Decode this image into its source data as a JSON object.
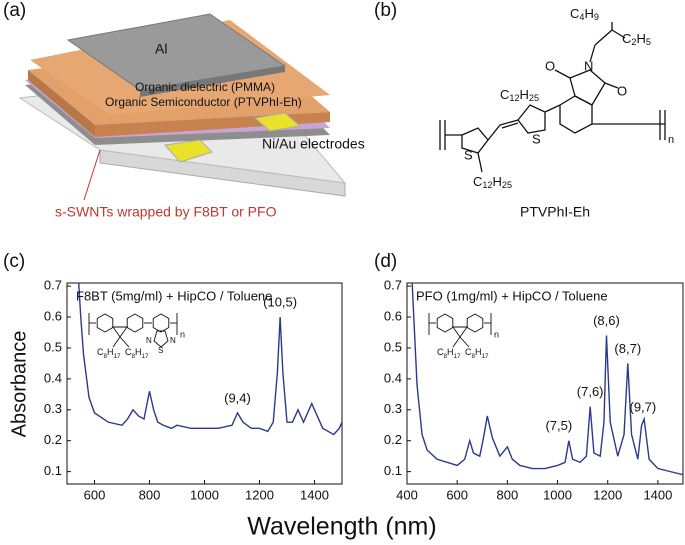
{
  "panel_labels": [
    "(a)",
    "(b)",
    "(c)",
    "(d)"
  ],
  "device": {
    "layers": [
      "Al",
      "Organic dielectric (PMMA)",
      "Organic Semiconductor (PTVPhI-Eh)",
      "Ni/Au electrodes"
    ],
    "annotation": "s-SWNTs wrapped by F8BT or PFO"
  },
  "molecule": {
    "name": "PTVPhI-Eh",
    "atoms": [
      "N",
      "O",
      "O",
      "S",
      "S"
    ],
    "substituents": [
      "C4H9",
      "C2H5",
      "C12H25",
      "C12H25"
    ],
    "repeat": "n"
  },
  "y_axis_label": "Absorbance",
  "x_axis_label": "Wavelength (nm)",
  "chart_data": [
    {
      "type": "line",
      "title": "F8BT (5mg/ml) + HipCO / Toluene",
      "color": "#2c3a8c",
      "inset_labels": [
        "C8H17",
        "C8H17",
        "N",
        "S",
        "N",
        "n"
      ],
      "x": [
        540,
        550,
        560,
        580,
        600,
        650,
        700,
        720,
        740,
        760,
        780,
        800,
        815,
        830,
        850,
        880,
        900,
        950,
        1000,
        1050,
        1100,
        1120,
        1140,
        1170,
        1200,
        1230,
        1250,
        1265,
        1275,
        1285,
        1300,
        1320,
        1340,
        1360,
        1380,
        1390,
        1410,
        1430,
        1450,
        1470,
        1490,
        1500
      ],
      "values": [
        0.75,
        0.6,
        0.48,
        0.34,
        0.29,
        0.26,
        0.25,
        0.27,
        0.3,
        0.28,
        0.27,
        0.36,
        0.3,
        0.26,
        0.25,
        0.24,
        0.25,
        0.24,
        0.24,
        0.24,
        0.25,
        0.29,
        0.26,
        0.24,
        0.24,
        0.23,
        0.26,
        0.42,
        0.6,
        0.42,
        0.26,
        0.26,
        0.3,
        0.26,
        0.3,
        0.32,
        0.28,
        0.24,
        0.23,
        0.22,
        0.24,
        0.26
      ],
      "annotations": [
        {
          "text": "(9,4)",
          "x": 1120
        },
        {
          "text": "(10,5)",
          "x": 1275
        }
      ],
      "xlim": [
        500,
        1500
      ],
      "xticks": [
        600,
        800,
        1000,
        1200,
        1400
      ],
      "ylim": [
        0.06,
        0.71
      ],
      "yticks": [
        0.1,
        0.2,
        0.3,
        0.4,
        0.5,
        0.6,
        0.7
      ]
    },
    {
      "type": "line",
      "title": "PFO (1mg/ml) + HipCO / Toluene",
      "color": "#2c3a8c",
      "inset_labels": [
        "C8H17",
        "C8H17",
        "n"
      ],
      "x": [
        420,
        430,
        440,
        460,
        480,
        520,
        560,
        600,
        630,
        650,
        665,
        690,
        705,
        720,
        740,
        770,
        790,
        800,
        820,
        850,
        900,
        950,
        1000,
        1030,
        1045,
        1060,
        1090,
        1115,
        1130,
        1145,
        1170,
        1185,
        1195,
        1210,
        1240,
        1265,
        1280,
        1295,
        1320,
        1335,
        1345,
        1365,
        1400,
        1450,
        1500
      ],
      "values": [
        0.72,
        0.55,
        0.38,
        0.22,
        0.17,
        0.14,
        0.13,
        0.12,
        0.14,
        0.2,
        0.16,
        0.15,
        0.21,
        0.28,
        0.21,
        0.15,
        0.17,
        0.18,
        0.14,
        0.12,
        0.11,
        0.11,
        0.12,
        0.13,
        0.2,
        0.14,
        0.13,
        0.15,
        0.31,
        0.16,
        0.15,
        0.26,
        0.54,
        0.26,
        0.15,
        0.22,
        0.45,
        0.22,
        0.14,
        0.25,
        0.27,
        0.14,
        0.11,
        0.1,
        0.09
      ],
      "annotations": [
        {
          "text": "(7,5)",
          "x": 1045
        },
        {
          "text": "(7,6)",
          "x": 1130
        },
        {
          "text": "(8,6)",
          "x": 1195
        },
        {
          "text": "(8,7)",
          "x": 1280
        },
        {
          "text": "(9,7)",
          "x": 1340
        }
      ],
      "xlim": [
        400,
        1500
      ],
      "xticks": [
        400,
        600,
        800,
        1000,
        1200,
        1400
      ],
      "ylim": [
        0.06,
        0.71
      ],
      "yticks": [
        0.1,
        0.2,
        0.3,
        0.4,
        0.5,
        0.6,
        0.7
      ]
    }
  ]
}
